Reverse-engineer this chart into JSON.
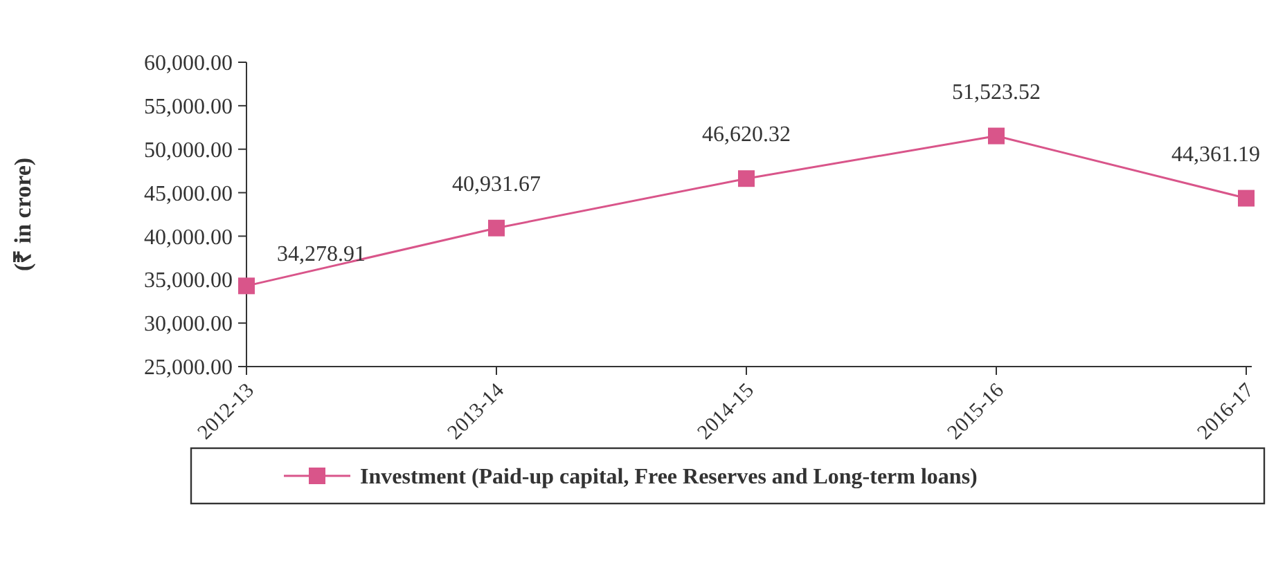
{
  "chart_data": {
    "type": "line",
    "ylabel": "(₹ in crore)",
    "categories": [
      "2012-13",
      "2013-14",
      "2014-15",
      "2015-16",
      "2016-17"
    ],
    "series": [
      {
        "name": "Investment (Paid-up capital, Free Reserves and Long-term loans)",
        "color": "#d9558a",
        "values": [
          34278.91,
          40931.67,
          46620.32,
          51523.52,
          44361.19
        ]
      }
    ],
    "ylim": [
      25000,
      60000
    ],
    "yticks": [
      {
        "value": 25000,
        "label": "25,000.00"
      },
      {
        "value": 30000,
        "label": "30,000.00"
      },
      {
        "value": 35000,
        "label": "35,000.00"
      },
      {
        "value": 40000,
        "label": "40,000.00"
      },
      {
        "value": 45000,
        "label": "45,000.00"
      },
      {
        "value": 50000,
        "label": "50,000.00"
      },
      {
        "value": 55000,
        "label": "55,000.00"
      },
      {
        "value": 60000,
        "label": "60,000.00"
      }
    ],
    "value_labels": [
      "34,278.91",
      "40,931.67",
      "46,620.32",
      "51,523.52",
      "44,361.19"
    ],
    "marker": "square",
    "line_style": "solid",
    "grid": false,
    "legend": "bottom"
  }
}
